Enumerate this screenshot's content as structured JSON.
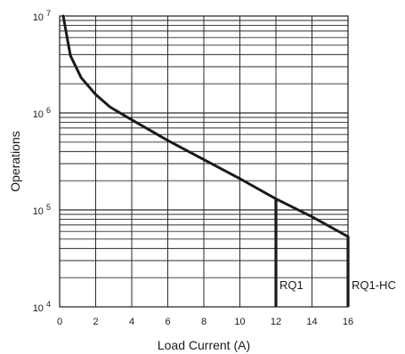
{
  "chart_data": {
    "type": "line",
    "xlabel": "Load Current (A)",
    "ylabel": "Operations",
    "xlim": [
      0,
      16
    ],
    "ylim": [
      10000,
      10000000
    ],
    "y_scale": "log",
    "grid": true,
    "x_ticks": [
      "0",
      "2",
      "4",
      "6",
      "8",
      "10",
      "12",
      "14",
      "16"
    ],
    "y_ticks": [
      {
        "value": 10000,
        "base": "10",
        "exp": "4"
      },
      {
        "value": 100000,
        "base": "10",
        "exp": "5"
      },
      {
        "value": 1000000,
        "base": "10",
        "exp": "6"
      },
      {
        "value": 10000000,
        "base": "10",
        "exp": "7"
      }
    ],
    "curve": {
      "x": [
        0.2,
        0.4,
        0.6,
        1.2,
        2.0,
        2.8,
        4.0,
        6.0,
        8.0,
        10.0,
        12.0,
        14.0,
        16.0
      ],
      "y": [
        10000000,
        6200000,
        3900000,
        2300000,
        1550000,
        1150000,
        850000,
        520000,
        330000,
        210000,
        130000,
        85000,
        53000
      ]
    },
    "cutoffs": [
      {
        "label": "RQ1",
        "x": 12,
        "y": 130000
      },
      {
        "label": "RQ1-HC",
        "x": 16,
        "y": 53000
      }
    ]
  }
}
